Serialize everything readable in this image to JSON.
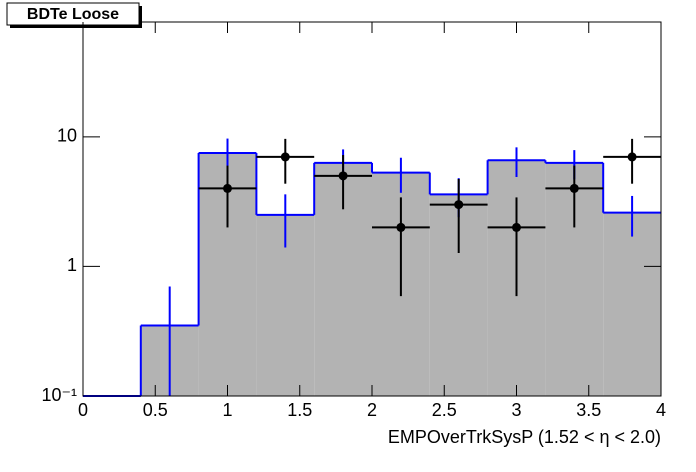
{
  "chart_data": {
    "type": "histogram",
    "title": "BDTe Loose",
    "x_label": "EMPOverTrkSysP (1.52 <   η < 2.0)",
    "bins": [
      0,
      0.4,
      0.8,
      1.2,
      1.6,
      2.0,
      2.4,
      2.8,
      3.2,
      3.6,
      4.0
    ],
    "series": [
      {
        "color": "#0000ff",
        "fill": "#b3b3b3",
        "values": [
          0.1,
          0.35,
          7.5,
          2.5,
          6.3,
          5.3,
          3.6,
          6.6,
          6.3,
          2.6
        ],
        "errors": [
          0,
          0.35,
          2.2,
          1.1,
          1.7,
          1.6,
          1.2,
          1.7,
          1.6,
          0.9
        ]
      },
      {
        "color": "#000000",
        "values": [
          null,
          null,
          4,
          7,
          5,
          2,
          3,
          2,
          4,
          7
        ],
        "errors": [
          null,
          null,
          2,
          2.65,
          2.24,
          1.41,
          1.73,
          1.41,
          2,
          2.65
        ]
      }
    ],
    "xlim": [
      0,
      4
    ],
    "xticks": [
      0,
      0.5,
      1,
      1.5,
      2,
      2.5,
      3,
      3.5,
      4
    ],
    "ylim": [
      0.1,
      77
    ],
    "log_y": true,
    "yticks": [
      {
        "value": 0.1,
        "label": "10⁻¹"
      },
      1,
      10
    ]
  }
}
